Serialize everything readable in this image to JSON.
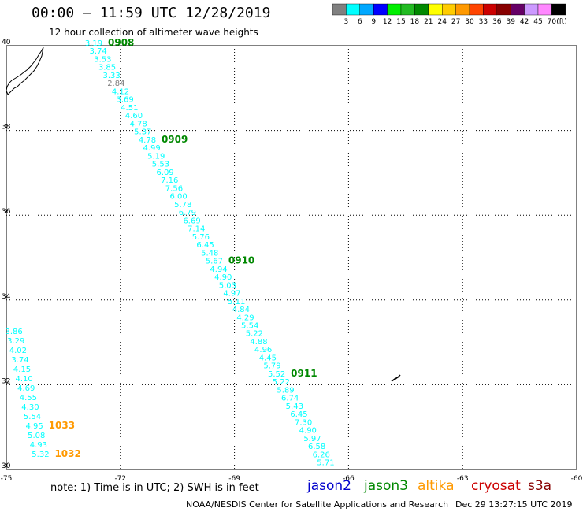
{
  "header": {
    "title": "00:00 – 11:59 UTC 12/28/2019",
    "subtitle": "12 hour collection of altimeter wave heights"
  },
  "scale": {
    "unit": "(ft)",
    "labels": [
      "3",
      "6",
      "9",
      "12",
      "15",
      "18",
      "21",
      "24",
      "27",
      "30",
      "33",
      "36",
      "39",
      "42",
      "45",
      "70"
    ],
    "colors": [
      "#808080",
      "#00ffff",
      "#00a8ff",
      "#0000ff",
      "#00ee00",
      "#22bb22",
      "#008800",
      "#ffff00",
      "#ffcc00",
      "#ff9900",
      "#ff4400",
      "#cc0000",
      "#880000",
      "#660066",
      "#cc99ff",
      "#ff88ff",
      "#000000"
    ]
  },
  "map": {
    "lon_labels": [
      "-75",
      "-72",
      "-69",
      "-66",
      "-63",
      "-60"
    ],
    "lat_labels": [
      "40",
      "38",
      "36",
      "34",
      "32",
      "30"
    ],
    "lon_range": [
      -75,
      -60
    ],
    "lat_range": [
      30,
      40
    ],
    "tracks": [
      {
        "name": "jason3 track 1",
        "values": [
          "3.19",
          "3.74",
          "3.53",
          "3.85",
          "3.33",
          "2.84",
          "4.12",
          "3.69",
          "4.51",
          "4.60",
          "4.78",
          "5.37",
          "4.78",
          "4.99",
          "5.19",
          "5.53",
          "6.09",
          "7.16",
          "7.56",
          "6.00",
          "5.78",
          "6.79",
          "6.69",
          "7.14",
          "5.76",
          "6.45",
          "5.48",
          "5.67",
          "4.94",
          "4.90",
          "5.03",
          "4.97",
          "5.11",
          "4.84",
          "4.29",
          "5.54",
          "5.22",
          "4.88",
          "4.96",
          "4.45",
          "5.79",
          "5.52",
          "5.22",
          "5.89",
          "6.74",
          "5.43",
          "6.45",
          "7.30",
          "4.90",
          "5.97",
          "6.58",
          "6.26",
          "5.71"
        ],
        "times": [
          {
            "label": "0908",
            "index": 0
          },
          {
            "label": "0909",
            "index": 12
          },
          {
            "label": "0910",
            "index": 27
          },
          {
            "label": "0911",
            "index": 41
          }
        ],
        "start": [
          -72.7,
          40.0
        ],
        "end": [
          -66.6,
          30.1
        ],
        "label_color": "#008800"
      },
      {
        "name": "altika track",
        "values": [
          "3.86",
          "3.29",
          "4.02",
          "3.74",
          "4.15",
          "4.10",
          "4.69",
          "4.55",
          "4.30",
          "5.54",
          "4.95",
          "5.08",
          "4.93",
          "5.32"
        ],
        "times": [
          {
            "label": "1033",
            "index": 10
          },
          {
            "label": "1032",
            "index": 13
          }
        ],
        "start": [
          -74.8,
          33.2
        ],
        "end": [
          -74.1,
          30.3
        ],
        "label_color": "#ff9900"
      }
    ]
  },
  "satellites": [
    {
      "name": "jason2",
      "color": "#0000cc"
    },
    {
      "name": "jason3",
      "color": "#008800"
    },
    {
      "name": "altika",
      "color": "#ff9900"
    },
    {
      "name": "cryosat",
      "color": "#cc0000"
    },
    {
      "name": "s3a",
      "color": "#880000"
    }
  ],
  "footer": {
    "note": "note: 1) Time is in UTC; 2) SWH is in feet",
    "credit": "NOAA/NESDIS Center for Satellite Applications and Research",
    "timestamp": "Dec 29 13:27:15 UTC 2019"
  }
}
